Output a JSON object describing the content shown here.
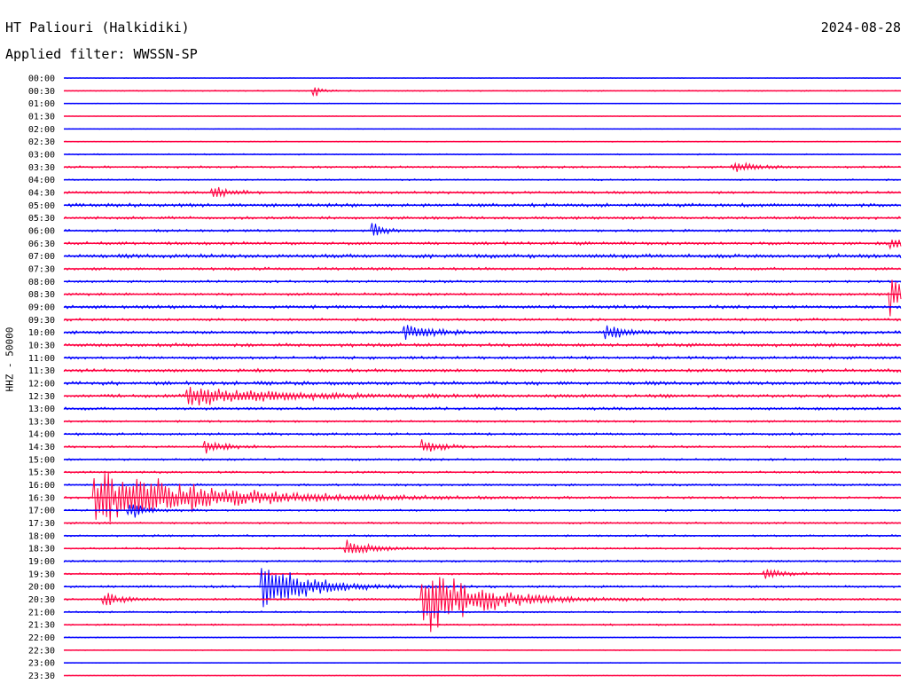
{
  "header": {
    "station": "HT Paliouri (Halkidiki)",
    "date": "2024-08-28",
    "filter": "Applied filter: WWSSN-SP"
  },
  "chart_data": {
    "type": "line",
    "title": "HT Paliouri (Halkidiki)",
    "subtitle": "Applied filter: WWSSN-SP",
    "date": "2024-08-28",
    "ylabel": "HHZ - 50000",
    "xlabel": "",
    "grid": false,
    "colors": {
      "even_row": "#0000ff",
      "odd_row": "#ff0040"
    },
    "rows": [
      "00:00",
      "00:30",
      "01:00",
      "01:30",
      "02:00",
      "02:30",
      "03:00",
      "03:30",
      "04:00",
      "04:30",
      "05:00",
      "05:30",
      "06:00",
      "06:30",
      "07:00",
      "07:30",
      "08:00",
      "08:30",
      "09:00",
      "09:30",
      "10:00",
      "10:30",
      "11:00",
      "11:30",
      "12:00",
      "12:30",
      "13:00",
      "13:30",
      "14:00",
      "14:30",
      "15:00",
      "15:30",
      "16:00",
      "16:30",
      "17:00",
      "17:30",
      "18:00",
      "18:30",
      "19:00",
      "19:30",
      "20:00",
      "20:30",
      "21:00",
      "21:30",
      "22:00",
      "22:30",
      "23:00",
      "23:30"
    ],
    "noise_level": [
      0.3,
      0.5,
      0.3,
      0.3,
      0.3,
      0.4,
      0.6,
      1.0,
      0.7,
      1.2,
      1.6,
      1.3,
      1.1,
      1.4,
      1.8,
      1.3,
      1.1,
      1.2,
      1.5,
      1.2,
      1.4,
      1.6,
      1.3,
      1.5,
      1.7,
      1.5,
      1.3,
      1.0,
      1.1,
      1.0,
      1.0,
      1.0,
      1.0,
      1.0,
      0.9,
      0.9,
      0.9,
      0.9,
      0.9,
      0.9,
      1.0,
      1.0,
      0.8,
      0.8,
      0.5,
      0.4,
      0.3,
      0.3
    ],
    "events": [
      {
        "row": "00:30",
        "x": 0.3,
        "amp": 8,
        "dur": 0.01
      },
      {
        "row": "03:30",
        "x": 0.8,
        "amp": 6,
        "dur": 0.03
      },
      {
        "row": "04:30",
        "x": 0.18,
        "amp": 8,
        "dur": 0.02
      },
      {
        "row": "06:00",
        "x": 0.37,
        "amp": 14,
        "dur": 0.01
      },
      {
        "row": "06:30",
        "x": 0.99,
        "amp": 12,
        "dur": 0.01
      },
      {
        "row": "08:30",
        "x": 0.99,
        "amp": 30,
        "dur": 0.01
      },
      {
        "row": "10:00",
        "x": 0.41,
        "amp": 12,
        "dur": 0.03
      },
      {
        "row": "10:00",
        "x": 0.65,
        "amp": 11,
        "dur": 0.02
      },
      {
        "row": "12:30",
        "x": 0.15,
        "amp": 14,
        "dur": 0.1
      },
      {
        "row": "14:30",
        "x": 0.17,
        "amp": 10,
        "dur": 0.02
      },
      {
        "row": "14:30",
        "x": 0.43,
        "amp": 9,
        "dur": 0.02
      },
      {
        "row": "16:30",
        "x": 0.04,
        "amp": 40,
        "dur": 0.12
      },
      {
        "row": "17:00",
        "x": 0.08,
        "amp": 12,
        "dur": 0.02
      },
      {
        "row": "18:30",
        "x": 0.34,
        "amp": 10,
        "dur": 0.03
      },
      {
        "row": "19:30",
        "x": 0.84,
        "amp": 8,
        "dur": 0.02
      },
      {
        "row": "20:00",
        "x": 0.24,
        "amp": 34,
        "dur": 0.05
      },
      {
        "row": "20:30",
        "x": 0.43,
        "amp": 50,
        "dur": 0.06
      },
      {
        "row": "20:30",
        "x": 0.05,
        "amp": 9,
        "dur": 0.02
      }
    ]
  }
}
